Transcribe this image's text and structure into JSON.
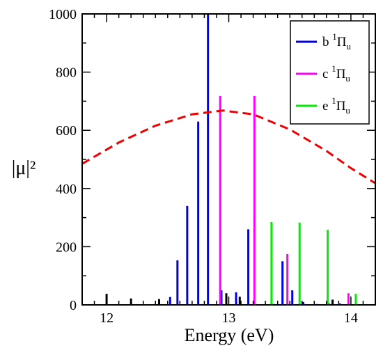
{
  "chart_data": {
    "type": "bar",
    "xlabel": "Energy (eV)",
    "ylabel": "|μ|²",
    "xlim": [
      11.8,
      14.2
    ],
    "ylim": [
      0,
      1000
    ],
    "xticks": [
      12,
      13,
      14
    ],
    "yticks": [
      0,
      200,
      400,
      600,
      800,
      1000
    ],
    "legend_position": "top-right",
    "series": [
      {
        "name": "b ¹Πᵤ",
        "legend": {
          "letter": "b",
          "sup": "1",
          "greek": "Π",
          "sub": "u"
        },
        "color": "#0000ee",
        "x": [
          12.52,
          12.58,
          12.66,
          12.75,
          12.83,
          12.94,
          13.06,
          13.16,
          13.37,
          13.44,
          13.52,
          13.61,
          13.72,
          13.82,
          13.91,
          13.98
        ],
        "values": [
          27,
          153,
          340,
          630,
          1000,
          50,
          43,
          260,
          3,
          150,
          50,
          10,
          3,
          5,
          5,
          3
        ]
      },
      {
        "name": "c ¹Πᵤ",
        "legend": {
          "letter": "c",
          "sup": "1",
          "greek": "Π",
          "sub": "u"
        },
        "color": "#ff00ff",
        "x": [
          12.93,
          13.21,
          13.48,
          13.98
        ],
        "values": [
          718,
          718,
          175,
          40
        ]
      },
      {
        "name": "e ¹Πᵤ",
        "legend": {
          "letter": "e",
          "sup": "1",
          "greek": "Π",
          "sub": "u"
        },
        "color": "#00ee00",
        "x": [
          13.35,
          13.58,
          13.81,
          14.04
        ],
        "values": [
          285,
          283,
          258,
          38
        ]
      },
      {
        "color": "#000000",
        "x": [
          12.0,
          12.2,
          12.43,
          12.98,
          13.09,
          13.85
        ],
        "values": [
          38,
          22,
          20,
          40,
          28,
          18
        ]
      },
      {
        "type": "line",
        "style": "dashed",
        "color": "#ee0000",
        "x": [
          11.8,
          12.1,
          12.4,
          12.7,
          12.95,
          13.2,
          13.5,
          13.8,
          14.0,
          14.2
        ],
        "values": [
          485,
          558,
          616,
          655,
          668,
          655,
          603,
          529,
          470,
          418
        ]
      }
    ]
  }
}
